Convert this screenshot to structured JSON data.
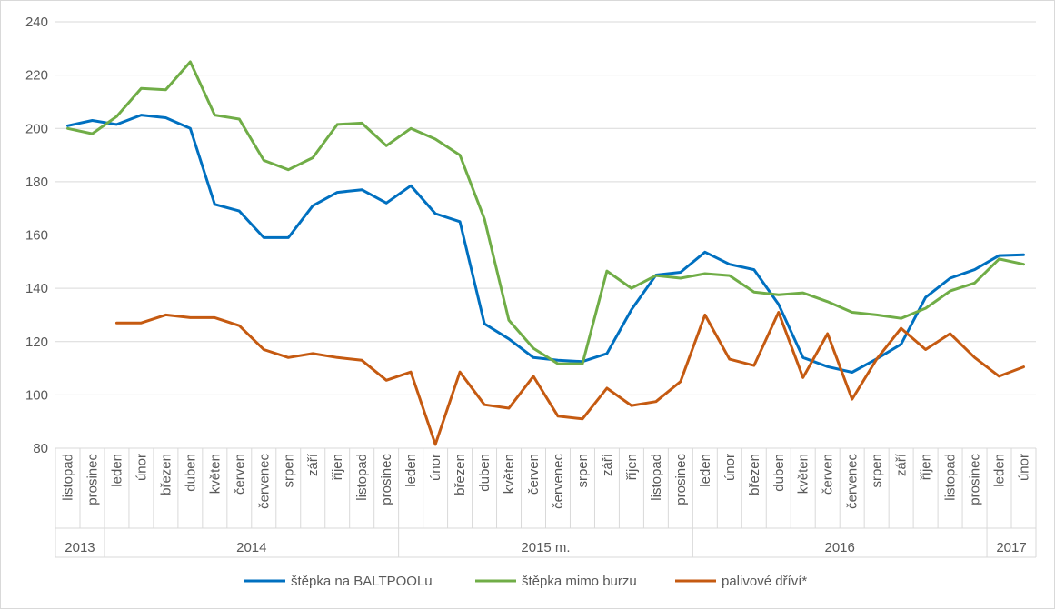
{
  "chart_data": {
    "type": "line",
    "title": "",
    "xlabel": "",
    "ylabel": "",
    "ylim": [
      80,
      240
    ],
    "yticks": [
      80,
      100,
      120,
      140,
      160,
      180,
      200,
      220,
      240
    ],
    "grid": true,
    "legend_position": "bottom",
    "groups": [
      {
        "label": "2013",
        "months": [
          "listopad",
          "prosinec"
        ]
      },
      {
        "label": "2014",
        "months": [
          "leden",
          "únor",
          "březen",
          "duben",
          "květen",
          "červen",
          "červenec",
          "srpen",
          "září",
          "říjen",
          "listopad",
          "prosinec"
        ]
      },
      {
        "label": "2015 m.",
        "months": [
          "leden",
          "únor",
          "březen",
          "duben",
          "květen",
          "červen",
          "červenec",
          "srpen",
          "září",
          "říjen",
          "listopad",
          "prosinec"
        ]
      },
      {
        "label": "2016",
        "months": [
          "leden",
          "únor",
          "březen",
          "duben",
          "květen",
          "červen",
          "červenec",
          "srpen",
          "září",
          "říjen",
          "listopad",
          "prosinec"
        ]
      },
      {
        "label": "2017",
        "months": [
          "leden",
          "únor"
        ]
      }
    ],
    "series": [
      {
        "name": "štěpka na BALTPOOLu",
        "color": "#0070C0",
        "values": [
          201,
          203,
          201.5,
          205,
          204,
          200,
          171.5,
          169,
          159,
          159,
          171,
          176,
          177,
          172,
          178.5,
          168,
          165,
          126.7,
          121,
          114,
          113,
          112.5,
          115.5,
          132,
          145,
          146,
          153.6,
          149,
          147,
          134,
          114,
          110.6,
          108.5,
          113.5,
          119,
          136.6,
          143.8,
          147,
          152.3,
          152.6
        ]
      },
      {
        "name": "štěpka mimo burzu",
        "color": "#70AD47",
        "values": [
          200,
          198,
          204.5,
          215,
          214.5,
          225,
          205,
          203.5,
          188,
          184.5,
          189,
          201.5,
          202,
          193.5,
          200,
          196,
          190,
          166,
          128,
          117.5,
          111.7,
          111.7,
          146.5,
          140,
          144.8,
          143.8,
          145.5,
          144.8,
          138.6,
          137.6,
          138.3,
          135,
          131,
          130,
          128.7,
          132.5,
          139,
          142,
          151,
          149
        ]
      },
      {
        "name": "palivové dříví*",
        "color": "#C55A11",
        "values": [
          null,
          null,
          127,
          127,
          130,
          129,
          129,
          126,
          117,
          114,
          115.5,
          114,
          113,
          105.5,
          108.6,
          81.4,
          108.6,
          96.3,
          95,
          107,
          92,
          91,
          102.5,
          96,
          97.5,
          105,
          130,
          113.4,
          111,
          131,
          106.5,
          123,
          98.4,
          113.4,
          125,
          117,
          123,
          114,
          107,
          110.5
        ]
      }
    ]
  }
}
